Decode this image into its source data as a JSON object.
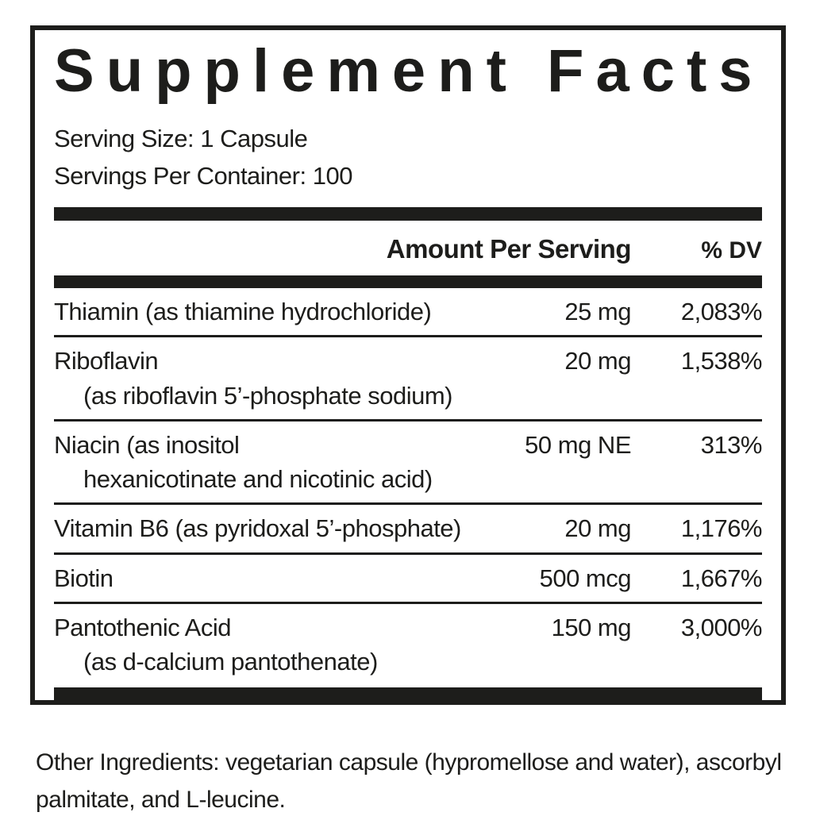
{
  "label": {
    "title": "Supplement Facts",
    "serving_size": "Serving Size: 1 Capsule",
    "servings_per_container": "Servings Per Container: 100",
    "header": {
      "amount_label": "Amount Per Serving",
      "dv_label": "% DV"
    },
    "rows": [
      {
        "name": "Thiamin (as thiamine hydrochloride)",
        "name2": "",
        "amount": "25 mg",
        "dv": "2,083%"
      },
      {
        "name": "Riboflavin",
        "name2": "(as riboflavin 5’-phosphate sodium)",
        "amount": "20 mg",
        "dv": "1,538%"
      },
      {
        "name": "Niacin (as inositol",
        "name2": "hexanicotinate and nicotinic acid)",
        "amount": "50 mg NE",
        "dv": "313%"
      },
      {
        "name": "Vitamin B6 (as pyridoxal 5’-phosphate)",
        "name2": "",
        "amount": "20 mg",
        "dv": "1,176%"
      },
      {
        "name": "Biotin",
        "name2": "",
        "amount": "500 mcg",
        "dv": "1,667%"
      },
      {
        "name": "Pantothenic Acid",
        "name2": "(as d-calcium pantothenate)",
        "amount": "150 mg",
        "dv": "3,000%"
      }
    ],
    "other_ingredients": "Other Ingredients: vegetarian capsule (hypromellose and water), ascorbyl palmitate, and L-leucine.",
    "colors": {
      "ink": "#1d1d1b",
      "background": "#ffffff"
    }
  }
}
